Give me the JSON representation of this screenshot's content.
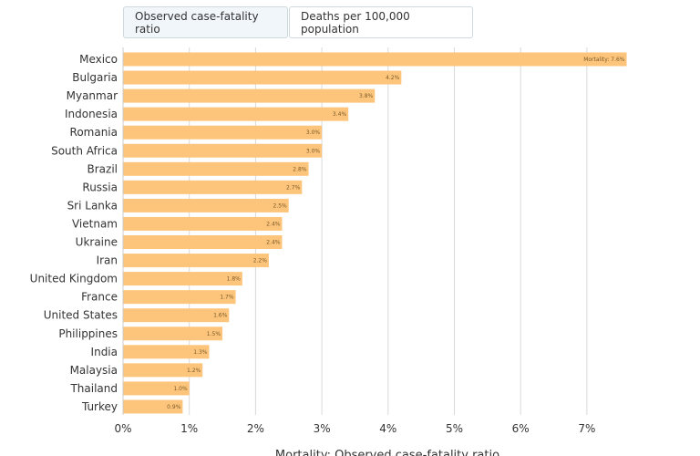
{
  "tabs": [
    {
      "label": "Observed case-fatality ratio",
      "active": true
    },
    {
      "label": "Deaths per 100,000 population",
      "active": false
    }
  ],
  "colors": {
    "bar": "#fdc57b",
    "grid": "#d9d9d9"
  },
  "chart_data": {
    "type": "bar",
    "orientation": "horizontal",
    "title": "",
    "xlabel": "Mortality: Observed case-fatality ratio",
    "ylabel": "",
    "xlim": [
      0,
      7.6
    ],
    "xticks": [
      0,
      1,
      2,
      3,
      4,
      5,
      6,
      7
    ],
    "xtick_labels": [
      "0%",
      "1%",
      "2%",
      "3%",
      "4%",
      "5%",
      "6%",
      "7%"
    ],
    "grid": true,
    "categories": [
      "Mexico",
      "Bulgaria",
      "Myanmar",
      "Indonesia",
      "Romania",
      "South Africa",
      "Brazil",
      "Russia",
      "Sri Lanka",
      "Vietnam",
      "Ukraine",
      "Iran",
      "United Kingdom",
      "France",
      "United States",
      "Philippines",
      "India",
      "Malaysia",
      "Thailand",
      "Turkey"
    ],
    "values": [
      7.6,
      4.2,
      3.8,
      3.4,
      3.0,
      3.0,
      2.8,
      2.7,
      2.5,
      2.4,
      2.4,
      2.2,
      1.8,
      1.7,
      1.6,
      1.5,
      1.3,
      1.2,
      1.0,
      0.9
    ],
    "data_labels": [
      "Mortality: 7.6%",
      "4.2%",
      "3.8%",
      "3.4%",
      "3.0%",
      "3.0%",
      "2.8%",
      "2.7%",
      "2.5%",
      "2.4%",
      "2.4%",
      "2.2%",
      "1.8%",
      "1.7%",
      "1.6%",
      "1.5%",
      "1.3%",
      "1.2%",
      "1.0%",
      "0.9%"
    ]
  }
}
